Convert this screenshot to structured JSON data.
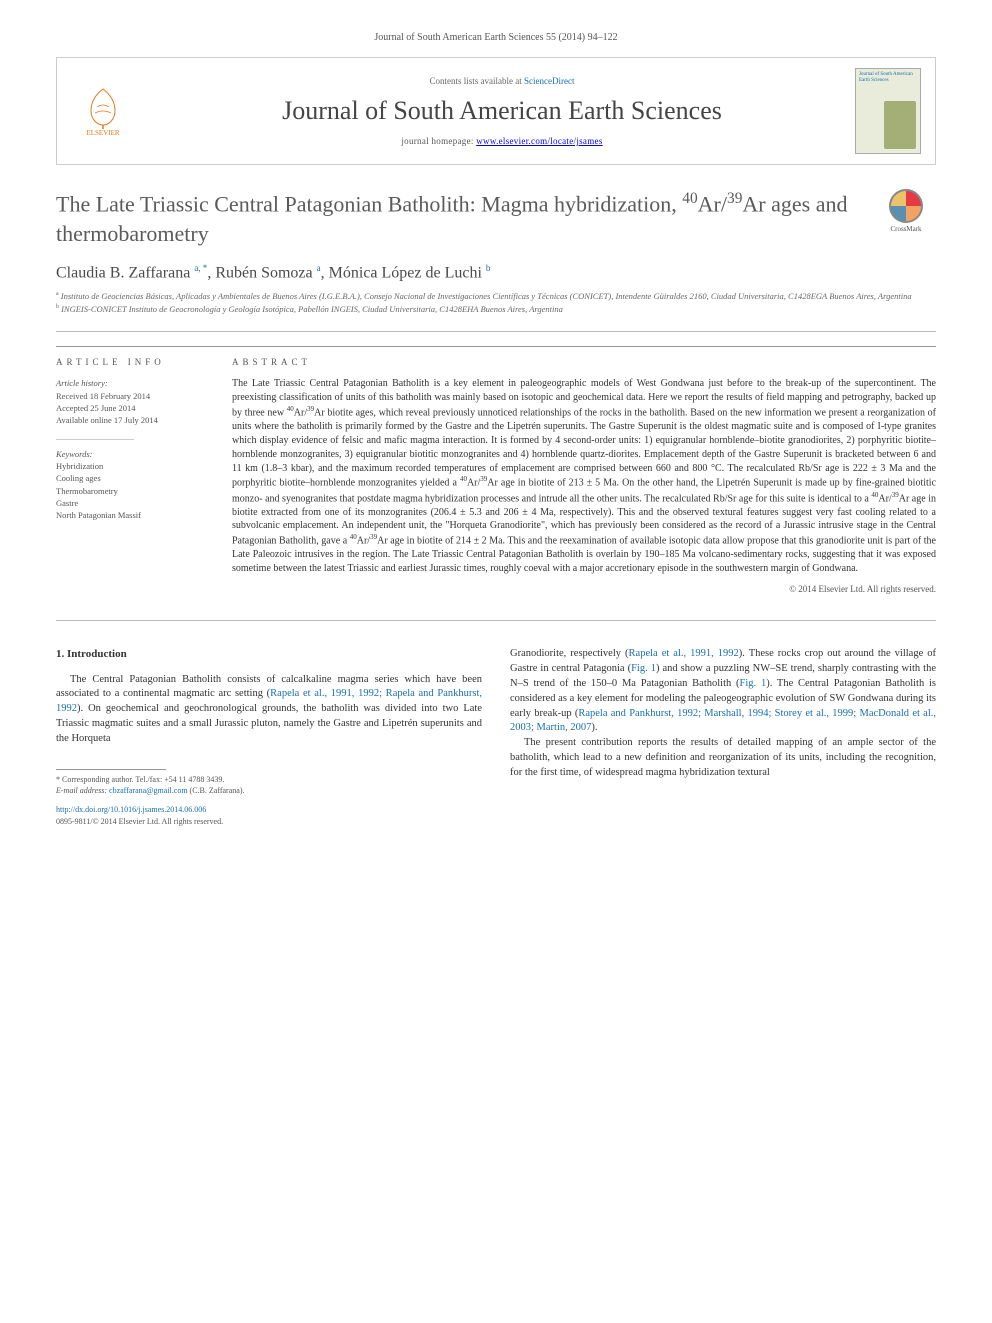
{
  "citation_line": "Journal of South American Earth Sciences 55 (2014) 94–122",
  "header": {
    "publisher": "ELSEVIER",
    "contents_prefix": "Contents lists available at ",
    "contents_link": "ScienceDirect",
    "journal_name": "Journal of South American Earth Sciences",
    "homepage_label": "journal homepage: ",
    "homepage_url": "www.elsevier.com/locate/jsames",
    "cover_title": "Journal of South American Earth Sciences"
  },
  "article": {
    "title_html": "The Late Triassic Central Patagonian Batholith: Magma hybridization, <sup>40</sup>Ar/<sup>39</sup>Ar ages and thermobarometry",
    "crossmark_label": "CrossMark",
    "authors_html": "Claudia B. Zaffarana <sup>a, *</sup>, Rubén Somoza <sup>a</sup>, Mónica López de Luchi <sup>b</sup>",
    "affiliations": {
      "a": "Instituto de Geociencias Básicas, Aplicadas y Ambientales de Buenos Aires (I.G.E.B.A.), Consejo Nacional de Investigaciones Científicas y Técnicas (CONICET), Intendente Güiraldes 2160, Ciudad Universitaria, C1428EGA Buenos Aires, Argentina",
      "b": "INGEIS-CONICET Instituto de Geocronología y Geología Isotópica, Pabellón INGEIS, Ciudad Universitaria, C1428EHA Buenos Aires, Argentina"
    }
  },
  "info": {
    "section_label": "ARTICLE INFO",
    "history_label": "Article history:",
    "received": "Received 18 February 2014",
    "accepted": "Accepted 25 June 2014",
    "online": "Available online 17 July 2014",
    "keywords_label": "Keywords:",
    "keywords": [
      "Hybridization",
      "Cooling ages",
      "Thermobarometry",
      "Gastre",
      "North Patagonian Massif"
    ]
  },
  "abstract": {
    "section_label": "ABSTRACT",
    "text_html": "The Late Triassic Central Patagonian Batholith is a key element in paleogeographic models of West Gondwana just before to the break-up of the supercontinent. The preexisting classification of units of this batholith was mainly based on isotopic and geochemical data. Here we report the results of field mapping and petrography, backed up by three new <sup>40</sup>Ar/<sup>39</sup>Ar biotite ages, which reveal previously unnoticed relationships of the rocks in the batholith. Based on the new information we present a reorganization of units where the batholith is primarily formed by the Gastre and the Lipetrén superunits. The Gastre Superunit is the oldest magmatic suite and is composed of I-type granites which display evidence of felsic and mafic magma interaction. It is formed by 4 second-order units: 1) equigranular hornblende–biotite granodiorites, 2) porphyritic biotite–hornblende monzogranites, 3) equigranular biotitic monzogranites and 4) hornblende quartz-diorites. Emplacement depth of the Gastre Superunit is bracketed between 6 and 11 km (1.8–3 kbar), and the maximum recorded temperatures of emplacement are comprised between 660 and 800 °C. The recalculated Rb/Sr age is 222 ± 3 Ma and the porphyritic biotite–hornblende monzogranites yielded a <sup>40</sup>Ar/<sup>39</sup>Ar age in biotite of 213 ± 5 Ma. On the other hand, the Lipetrén Superunit is made up by fine-grained biotitic monzo- and syenogranites that postdate magma hybridization processes and intrude all the other units. The recalculated Rb/Sr age for this suite is identical to a <sup>40</sup>Ar/<sup>39</sup>Ar age in biotite extracted from one of its monzogranites (206.4 ± 5.3 and 206 ± 4 Ma, respectively). This and the observed textural features suggest very fast cooling related to a subvolcanic emplacement. An independent unit, the \"Horqueta Granodiorite\", which has previously been considered as the record of a Jurassic intrusive stage in the Central Patagonian Batholith, gave a <sup>40</sup>Ar/<sup>39</sup>Ar age in biotite of 214 ± 2 Ma. This and the reexamination of available isotopic data allow propose that this granodiorite unit is part of the Late Paleozoic intrusives in the region. The Late Triassic Central Patagonian Batholith is overlain by 190–185 Ma volcano-sedimentary rocks, suggesting that it was exposed sometime between the latest Triassic and earliest Jurassic times, roughly coeval with a major accretionary episode in the southwestern margin of Gondwana.",
    "copyright": "© 2014 Elsevier Ltd. All rights reserved."
  },
  "body": {
    "intro_heading": "1. Introduction",
    "p1_html": "The Central Patagonian Batholith consists of calcalkaline magma series which have been associated to a continental magmatic arc setting (<span class='cite'>Rapela et al., 1991, 1992; Rapela and Pankhurst, 1992</span>). On geochemical and geochronological grounds, the batholith was divided into two Late Triassic magmatic suites and a small Jurassic pluton, namely the Gastre and Lipetrén superunits and the Horqueta",
    "p2_html": "Granodiorite, respectively (<span class='cite'>Rapela et al., 1991, 1992</span>). These rocks crop out around the village of Gastre in central Patagonia (<span class='cite'>Fig. 1</span>) and show a puzzling NW–SE trend, sharply contrasting with the N–S trend of the 150–0 Ma Patagonian Batholith (<span class='cite'>Fig. 1</span>). The Central Patagonian Batholith is considered as a key element for modeling the paleogeographic evolution of SW Gondwana during its early break-up (<span class='cite'>Rapela and Pankhurst, 1992; Marshall, 1994; Storey et al., 1999; MacDonald et al., 2003; Martin, 2007</span>).",
    "p3_html": "The present contribution reports the results of detailed mapping of an ample sector of the batholith, which lead to a new definition and reorganization of its units, including the recognition, for the first time, of widespread magma hybridization textural"
  },
  "footer": {
    "corresponding": "* Corresponding author. Tel./fax: +54 11 4788 3439.",
    "email_label": "E-mail address: ",
    "email": "cbzaffarana@gmail.com",
    "email_who": " (C.B. Zaffarana).",
    "doi": "http://dx.doi.org/10.1016/j.jsames.2014.06.006",
    "issn_line": "0895-9811/© 2014 Elsevier Ltd. All rights reserved."
  },
  "colors": {
    "link": "#1a6fb0",
    "elsevier_orange": "#e67a17",
    "text": "#333333",
    "muted": "#555555",
    "rule": "#bbbbbb"
  }
}
